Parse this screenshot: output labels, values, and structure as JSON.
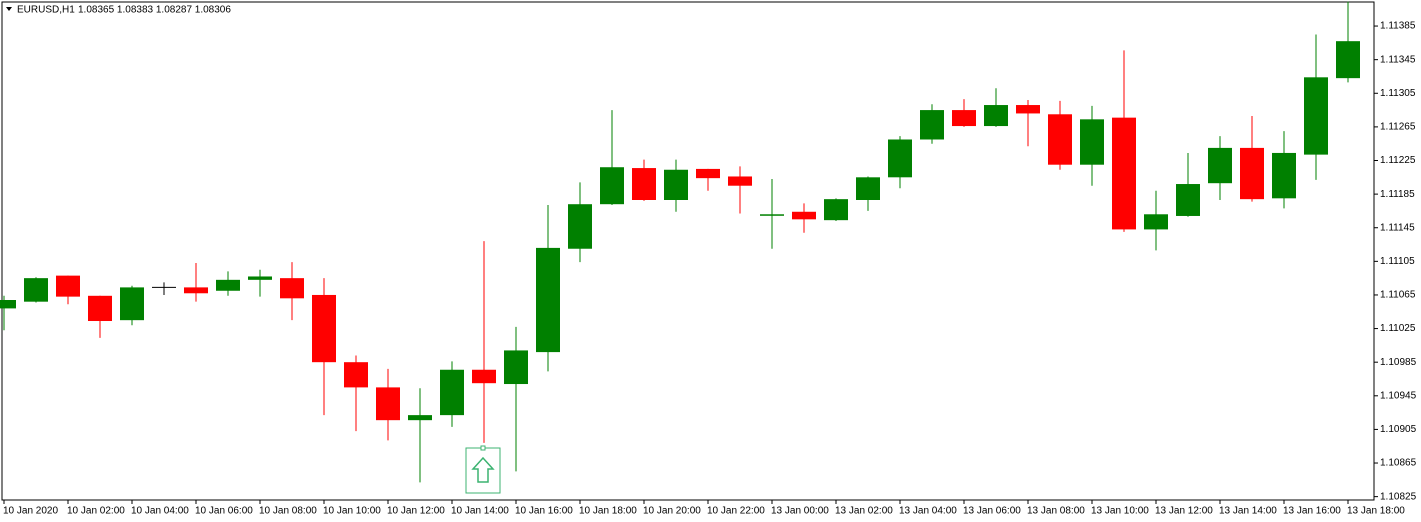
{
  "chart_data": {
    "type": "candlestick",
    "title": "EURUSD,H1",
    "subtitle": "1.08365 1.08383 1.08287 1.08306",
    "categories": [
      "10 Jan 2020",
      null,
      "10 Jan 02:00",
      null,
      "10 Jan 04:00",
      null,
      "10 Jan 06:00",
      null,
      "10 Jan 08:00",
      null,
      "10 Jan 10:00",
      null,
      "10 Jan 12:00",
      null,
      "10 Jan 14:00",
      null,
      "10 Jan 16:00",
      null,
      "10 Jan 18:00",
      null,
      "10 Jan 20:00",
      null,
      "10 Jan 22:00",
      null,
      "13 Jan 00:00",
      null,
      "13 Jan 02:00",
      null,
      "13 Jan 04:00",
      null,
      "13 Jan 06:00",
      null,
      "13 Jan 08:00",
      null,
      "13 Jan 10:00",
      null,
      "13 Jan 12:00",
      null,
      "13 Jan 14:00",
      null,
      "13 Jan 16:00",
      null,
      "13 Jan 18:00"
    ],
    "open": [
      1.11049,
      1.11057,
      1.11088,
      1.11064,
      1.11035,
      1.11074,
      1.11074,
      1.1107,
      1.11083,
      1.11085,
      1.11065,
      1.10985,
      1.10955,
      1.10916,
      1.10922,
      1.10976,
      1.10959,
      1.10997,
      1.1112,
      1.11173,
      1.11216,
      1.11178,
      1.11215,
      1.11206,
      1.1116,
      1.11164,
      1.11154,
      1.11178,
      1.11205,
      1.1125,
      1.11285,
      1.11266,
      1.11291,
      1.1128,
      1.1122,
      1.11276,
      1.11143,
      1.11159,
      1.11198,
      1.1124,
      1.1118,
      1.11232,
      1.11323
    ],
    "high": [
      1.11064,
      1.11086,
      1.11088,
      1.11064,
      1.11076,
      1.1108,
      1.11103,
      1.11093,
      1.11095,
      1.11104,
      1.11085,
      1.10993,
      1.10977,
      1.10954,
      1.10986,
      1.11129,
      1.11027,
      1.11172,
      1.11199,
      1.11285,
      1.11226,
      1.11226,
      1.11215,
      1.11218,
      1.11203,
      1.11174,
      1.1118,
      1.11206,
      1.11254,
      1.11292,
      1.11298,
      1.11311,
      1.11297,
      1.11296,
      1.1129,
      1.11356,
      1.11189,
      1.11234,
      1.11254,
      1.11278,
      1.1126,
      1.11375,
      1.11414
    ],
    "low": [
      1.11023,
      1.11056,
      1.11054,
      1.11014,
      1.11029,
      1.11065,
      1.11057,
      1.11064,
      1.11063,
      1.11035,
      1.10922,
      1.10903,
      1.10892,
      1.10842,
      1.10908,
      1.10889,
      1.10855,
      1.10974,
      1.11104,
      1.11172,
      1.11177,
      1.11164,
      1.11189,
      1.11162,
      1.1112,
      1.11139,
      1.11153,
      1.11165,
      1.11192,
      1.11245,
      1.11265,
      1.11265,
      1.11242,
      1.11214,
      1.11195,
      1.1114,
      1.11118,
      1.11158,
      1.11178,
      1.11176,
      1.11168,
      1.11202,
      1.11318
    ],
    "close": [
      1.11059,
      1.11085,
      1.11063,
      1.11034,
      1.11074,
      1.11074,
      1.11067,
      1.11083,
      1.11087,
      1.11061,
      1.10985,
      1.10955,
      1.10916,
      1.10922,
      1.10976,
      1.1096,
      1.10999,
      1.11121,
      1.11173,
      1.11217,
      1.11178,
      1.11214,
      1.11204,
      1.11195,
      1.11161,
      1.11155,
      1.11179,
      1.11205,
      1.1125,
      1.11285,
      1.11266,
      1.11291,
      1.11281,
      1.1122,
      1.11274,
      1.11143,
      1.11161,
      1.11197,
      1.1124,
      1.11179,
      1.11234,
      1.11324,
      1.11367
    ],
    "up_color": "#008000",
    "down_color": "#ff0000",
    "doji_color": "#000000",
    "ylim": [
      1.10821,
      1.11416
    ],
    "yticks": [
      1.10825,
      1.10865,
      1.10905,
      1.10945,
      1.10985,
      1.11025,
      1.11065,
      1.11105,
      1.11145,
      1.11185,
      1.11225,
      1.11265,
      1.11305,
      1.11345,
      1.11385
    ],
    "grid": false
  }
}
